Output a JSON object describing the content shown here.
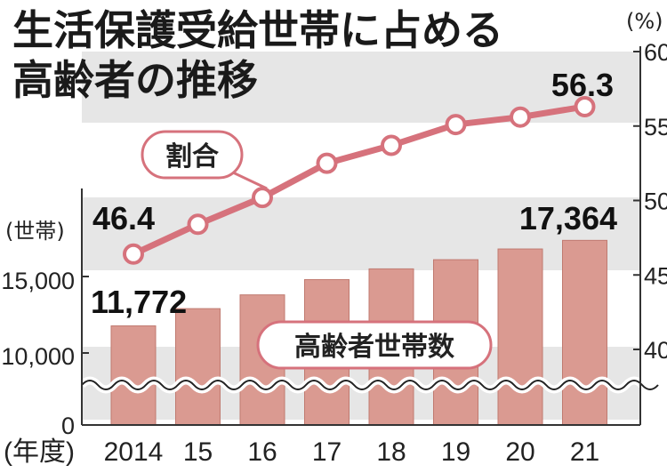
{
  "title_line1": "生活保護受給世帯に占める",
  "title_line2": "高齢者の推移",
  "chart_data": {
    "type": "bar+line",
    "categories": [
      "2014",
      "15",
      "16",
      "17",
      "18",
      "19",
      "20",
      "21"
    ],
    "x_unit": "(年度)",
    "series": [
      {
        "name": "高齢者世帯数",
        "type": "bar",
        "axis": "left",
        "values": [
          11772,
          12900,
          13800,
          14800,
          15500,
          16100,
          16800,
          17364
        ]
      },
      {
        "name": "割合",
        "type": "line",
        "axis": "right",
        "values": [
          46.4,
          48.4,
          50.2,
          52.5,
          53.7,
          55.1,
          55.6,
          56.3
        ]
      }
    ],
    "left_axis": {
      "unit": "(世帯)",
      "ticks": [
        "0",
        "10,000",
        "15,000"
      ],
      "broken": true
    },
    "right_axis": {
      "unit": "(%)",
      "ticks": [
        "40",
        "45",
        "50",
        "55",
        "60"
      ],
      "range": [
        40,
        60
      ]
    },
    "data_labels": {
      "bar_first": "11,772",
      "bar_last": "17,364",
      "line_first": "46.4",
      "line_last": "56.3"
    },
    "colors": {
      "bar": "#da9a91",
      "bar_stroke": "#c07a70",
      "line": "#d6727c",
      "marker_fill": "#ffffff",
      "band": "#e5e5e5"
    }
  }
}
